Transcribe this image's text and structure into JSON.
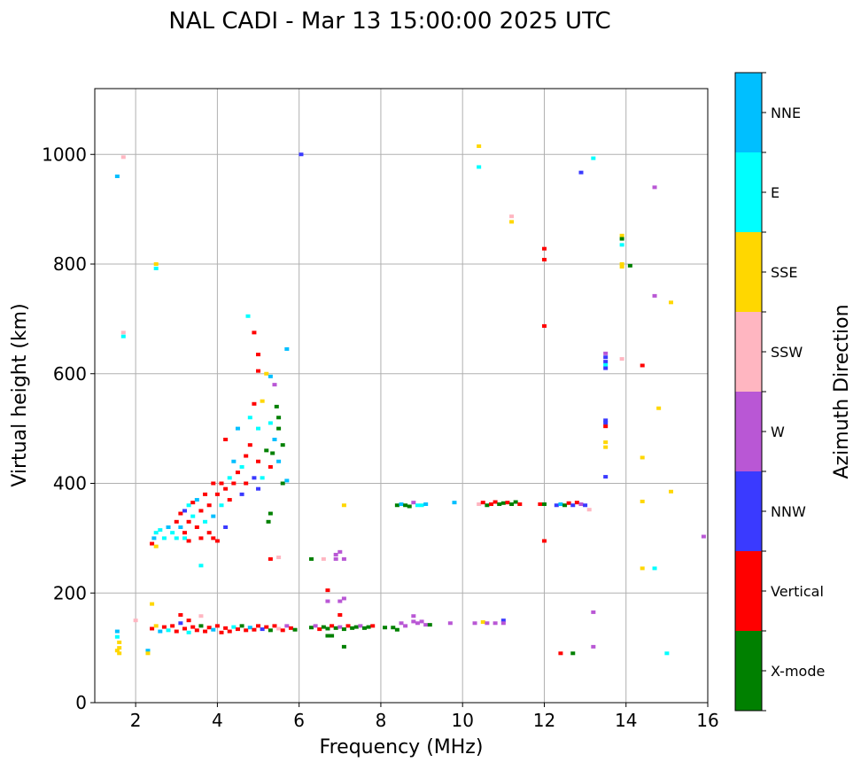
{
  "chart_data": {
    "type": "scatter",
    "title": "NAL CADI - Mar 13 15:00:00 2025 UTC",
    "xlabel": "Frequency (MHz)",
    "ylabel": "Virtual height (km)",
    "xlim": [
      1,
      16
    ],
    "ylim": [
      0,
      1120
    ],
    "xticks": [
      2,
      4,
      6,
      8,
      10,
      12,
      14,
      16
    ],
    "yticks": [
      0,
      200,
      400,
      600,
      800,
      1000
    ],
    "grid": true,
    "colorbar": {
      "label": "Azimuth Direction",
      "categories": [
        "X-mode",
        "Vertical",
        "NNW",
        "W",
        "SSW",
        "SSE",
        "E",
        "NNE"
      ],
      "colors": [
        "#008000",
        "#ff0000",
        "#3a3aff",
        "#b957d5",
        "#ffb6c1",
        "#ffd700",
        "#00ffff",
        "#00bfff"
      ]
    },
    "point_format": [
      "frequency_mhz",
      "height_km",
      "direction_index"
    ],
    "points": [
      [
        1.55,
        960,
        7
      ],
      [
        1.7,
        995,
        4
      ],
      [
        1.7,
        675,
        4
      ],
      [
        1.7,
        668,
        6
      ],
      [
        2.5,
        800,
        5
      ],
      [
        2.5,
        792,
        6
      ],
      [
        4.75,
        705,
        6
      ],
      [
        6.05,
        1000,
        2
      ],
      [
        10.4,
        1015,
        5
      ],
      [
        10.4,
        977,
        6
      ],
      [
        11.2,
        887,
        4
      ],
      [
        11.2,
        877,
        5
      ],
      [
        12.0,
        828,
        1
      ],
      [
        12.0,
        808,
        1
      ],
      [
        12.0,
        687,
        1
      ],
      [
        12.0,
        295,
        1
      ],
      [
        12.9,
        967,
        2
      ],
      [
        13.2,
        993,
        6
      ],
      [
        14.7,
        940,
        3
      ],
      [
        13.9,
        852,
        5
      ],
      [
        13.9,
        846,
        0
      ],
      [
        13.9,
        835,
        6
      ],
      [
        13.9,
        800,
        5
      ],
      [
        13.9,
        795,
        5
      ],
      [
        14.1,
        797,
        0
      ],
      [
        14.7,
        742,
        3
      ],
      [
        15.1,
        730,
        5
      ],
      [
        13.5,
        637,
        3
      ],
      [
        13.5,
        630,
        2
      ],
      [
        13.5,
        622,
        2
      ],
      [
        13.5,
        616,
        6
      ],
      [
        13.5,
        610,
        2
      ],
      [
        13.9,
        627,
        4
      ],
      [
        14.4,
        615,
        1
      ],
      [
        14.8,
        537,
        5
      ],
      [
        13.5,
        515,
        2
      ],
      [
        13.5,
        510,
        2
      ],
      [
        13.5,
        504,
        1
      ],
      [
        13.5,
        475,
        5
      ],
      [
        13.5,
        466,
        5
      ],
      [
        14.4,
        447,
        5
      ],
      [
        13.5,
        412,
        2
      ],
      [
        15.1,
        385,
        5
      ],
      [
        14.4,
        367,
        5
      ],
      [
        15.9,
        303,
        3
      ],
      [
        14.4,
        245,
        5
      ],
      [
        14.7,
        245,
        6
      ],
      [
        15.0,
        90,
        6
      ],
      [
        12.4,
        90,
        1
      ],
      [
        12.7,
        90,
        0
      ],
      [
        13.2,
        165,
        3
      ],
      [
        13.2,
        102,
        3
      ],
      [
        7.0,
        275,
        3
      ],
      [
        6.9,
        270,
        3
      ],
      [
        6.3,
        262,
        0
      ],
      [
        6.6,
        262,
        4
      ],
      [
        6.9,
        262,
        3
      ],
      [
        7.1,
        262,
        3
      ],
      [
        5.3,
        262,
        1
      ],
      [
        5.5,
        265,
        4
      ],
      [
        6.7,
        205,
        1
      ],
      [
        6.7,
        185,
        3
      ],
      [
        7.0,
        160,
        1
      ],
      [
        7.0,
        185,
        3
      ],
      [
        7.1,
        190,
        3
      ],
      [
        7.1,
        360,
        5
      ],
      [
        6.8,
        122,
        0
      ],
      [
        6.7,
        122,
        0
      ],
      [
        7.1,
        102,
        0
      ],
      [
        1.55,
        130,
        7
      ],
      [
        1.55,
        120,
        6
      ],
      [
        1.6,
        110,
        5
      ],
      [
        1.6,
        100,
        5
      ],
      [
        1.55,
        95,
        5
      ],
      [
        1.6,
        90,
        5
      ],
      [
        2.3,
        95,
        7
      ],
      [
        2.3,
        90,
        5
      ],
      [
        2.0,
        150,
        4
      ],
      [
        2.4,
        180,
        5
      ],
      [
        2.4,
        290,
        1
      ],
      [
        2.45,
        300,
        7
      ],
      [
        2.5,
        310,
        6
      ],
      [
        2.5,
        285,
        5
      ],
      [
        2.6,
        315,
        6
      ],
      [
        2.7,
        300,
        6
      ],
      [
        2.8,
        320,
        7
      ],
      [
        2.9,
        310,
        6
      ],
      [
        3.0,
        330,
        1
      ],
      [
        3.0,
        300,
        6
      ],
      [
        3.1,
        345,
        1
      ],
      [
        3.1,
        320,
        7
      ],
      [
        3.2,
        350,
        2
      ],
      [
        3.2,
        310,
        1
      ],
      [
        3.2,
        300,
        6
      ],
      [
        3.3,
        360,
        6
      ],
      [
        3.3,
        330,
        1
      ],
      [
        3.3,
        295,
        1
      ],
      [
        3.4,
        340,
        6
      ],
      [
        3.4,
        365,
        1
      ],
      [
        3.5,
        370,
        7
      ],
      [
        3.5,
        320,
        1
      ],
      [
        3.6,
        350,
        1
      ],
      [
        3.6,
        300,
        1
      ],
      [
        3.6,
        250,
        6
      ],
      [
        3.7,
        380,
        1
      ],
      [
        3.7,
        330,
        6
      ],
      [
        3.8,
        360,
        1
      ],
      [
        3.8,
        310,
        1
      ],
      [
        3.9,
        400,
        1
      ],
      [
        3.9,
        300,
        1
      ],
      [
        3.9,
        340,
        7
      ],
      [
        4.0,
        380,
        1
      ],
      [
        4.0,
        295,
        1
      ],
      [
        4.1,
        400,
        1
      ],
      [
        4.1,
        360,
        6
      ],
      [
        4.2,
        390,
        1
      ],
      [
        4.2,
        480,
        1
      ],
      [
        4.2,
        320,
        2
      ],
      [
        4.3,
        410,
        6
      ],
      [
        4.3,
        370,
        1
      ],
      [
        4.4,
        440,
        7
      ],
      [
        4.4,
        400,
        1
      ],
      [
        4.5,
        420,
        1
      ],
      [
        4.5,
        500,
        7
      ],
      [
        4.6,
        380,
        2
      ],
      [
        4.6,
        430,
        6
      ],
      [
        4.7,
        450,
        1
      ],
      [
        4.7,
        400,
        1
      ],
      [
        4.8,
        520,
        6
      ],
      [
        4.8,
        470,
        1
      ],
      [
        4.9,
        410,
        2
      ],
      [
        4.9,
        545,
        1
      ],
      [
        5.0,
        500,
        6
      ],
      [
        5.0,
        440,
        1
      ],
      [
        5.0,
        390,
        2
      ],
      [
        5.1,
        550,
        5
      ],
      [
        5.1,
        410,
        6
      ],
      [
        5.2,
        600,
        5
      ],
      [
        5.2,
        460,
        0
      ],
      [
        5.3,
        510,
        6
      ],
      [
        5.3,
        430,
        1
      ],
      [
        5.4,
        480,
        7
      ],
      [
        5.4,
        580,
        3
      ],
      [
        5.5,
        440,
        7
      ],
      [
        5.5,
        520,
        0
      ],
      [
        5.6,
        470,
        0
      ],
      [
        5.6,
        400,
        0
      ],
      [
        5.7,
        405,
        7
      ],
      [
        5.7,
        645,
        7
      ],
      [
        4.9,
        675,
        1
      ],
      [
        5.0,
        635,
        1
      ],
      [
        5.0,
        605,
        1
      ],
      [
        5.3,
        595,
        7
      ],
      [
        5.45,
        540,
        0
      ],
      [
        5.5,
        500,
        0
      ],
      [
        5.35,
        455,
        0
      ],
      [
        5.25,
        330,
        0
      ],
      [
        5.3,
        345,
        0
      ],
      [
        2.4,
        135,
        1
      ],
      [
        2.5,
        140,
        5
      ],
      [
        2.6,
        130,
        7
      ],
      [
        2.7,
        138,
        1
      ],
      [
        2.8,
        132,
        6
      ],
      [
        2.9,
        140,
        1
      ],
      [
        3.0,
        130,
        1
      ],
      [
        3.1,
        145,
        2
      ],
      [
        3.1,
        160,
        1
      ],
      [
        3.2,
        135,
        1
      ],
      [
        3.3,
        128,
        6
      ],
      [
        3.3,
        150,
        1
      ],
      [
        3.4,
        138,
        1
      ],
      [
        3.5,
        132,
        1
      ],
      [
        3.6,
        140,
        0
      ],
      [
        3.6,
        158,
        4
      ],
      [
        3.7,
        130,
        1
      ],
      [
        3.8,
        137,
        1
      ],
      [
        3.9,
        133,
        7
      ],
      [
        4.0,
        140,
        1
      ],
      [
        4.1,
        128,
        1
      ],
      [
        4.2,
        136,
        1
      ],
      [
        4.3,
        130,
        1
      ],
      [
        4.4,
        138,
        6
      ],
      [
        4.5,
        134,
        1
      ],
      [
        4.6,
        140,
        0
      ],
      [
        4.7,
        132,
        1
      ],
      [
        4.8,
        137,
        7
      ],
      [
        4.9,
        133,
        1
      ],
      [
        5.0,
        140,
        1
      ],
      [
        5.1,
        134,
        2
      ],
      [
        5.2,
        138,
        1
      ],
      [
        5.3,
        132,
        0
      ],
      [
        5.4,
        140,
        1
      ],
      [
        5.5,
        135,
        4
      ],
      [
        5.6,
        132,
        1
      ],
      [
        5.7,
        140,
        3
      ],
      [
        5.8,
        136,
        1
      ],
      [
        5.9,
        133,
        0
      ],
      [
        6.3,
        137,
        0
      ],
      [
        6.4,
        140,
        3
      ],
      [
        6.5,
        134,
        1
      ],
      [
        6.6,
        138,
        0
      ],
      [
        6.7,
        135,
        0
      ],
      [
        6.8,
        140,
        1
      ],
      [
        6.9,
        136,
        0
      ],
      [
        7.0,
        138,
        3
      ],
      [
        7.1,
        134,
        0
      ],
      [
        7.2,
        140,
        1
      ],
      [
        7.3,
        136,
        0
      ],
      [
        7.4,
        138,
        0
      ],
      [
        7.5,
        140,
        3
      ],
      [
        7.6,
        136,
        0
      ],
      [
        7.7,
        138,
        0
      ],
      [
        7.8,
        140,
        1
      ],
      [
        8.1,
        137,
        0
      ],
      [
        8.3,
        137,
        0
      ],
      [
        8.4,
        133,
        0
      ],
      [
        8.5,
        145,
        3
      ],
      [
        8.6,
        140,
        3
      ],
      [
        8.8,
        158,
        3
      ],
      [
        8.8,
        148,
        3
      ],
      [
        8.9,
        145,
        3
      ],
      [
        9.0,
        148,
        3
      ],
      [
        9.1,
        142,
        3
      ],
      [
        9.2,
        142,
        0
      ],
      [
        9.7,
        145,
        3
      ],
      [
        10.3,
        145,
        3
      ],
      [
        10.5,
        147,
        5
      ],
      [
        10.6,
        145,
        3
      ],
      [
        10.8,
        145,
        3
      ],
      [
        11.0,
        150,
        2
      ],
      [
        11.0,
        145,
        3
      ],
      [
        8.4,
        360,
        0
      ],
      [
        8.5,
        362,
        7
      ],
      [
        8.6,
        360,
        0
      ],
      [
        8.7,
        358,
        0
      ],
      [
        8.8,
        365,
        3
      ],
      [
        8.9,
        360,
        6
      ],
      [
        9.0,
        360,
        6
      ],
      [
        9.1,
        362,
        7
      ],
      [
        9.8,
        365,
        7
      ],
      [
        10.4,
        362,
        4
      ],
      [
        10.5,
        365,
        1
      ],
      [
        10.6,
        360,
        0
      ],
      [
        10.7,
        362,
        1
      ],
      [
        10.8,
        366,
        1
      ],
      [
        10.9,
        362,
        0
      ],
      [
        11.0,
        364,
        0
      ],
      [
        11.1,
        365,
        1
      ],
      [
        11.2,
        362,
        0
      ],
      [
        11.3,
        366,
        0
      ],
      [
        11.4,
        362,
        1
      ],
      [
        11.9,
        362,
        1
      ],
      [
        12.0,
        362,
        0
      ],
      [
        12.3,
        360,
        2
      ],
      [
        12.4,
        362,
        7
      ],
      [
        12.5,
        360,
        0
      ],
      [
        12.6,
        364,
        1
      ],
      [
        12.7,
        360,
        2
      ],
      [
        12.8,
        365,
        1
      ],
      [
        12.9,
        362,
        3
      ],
      [
        13.0,
        360,
        2
      ],
      [
        13.1,
        352,
        4
      ]
    ]
  }
}
